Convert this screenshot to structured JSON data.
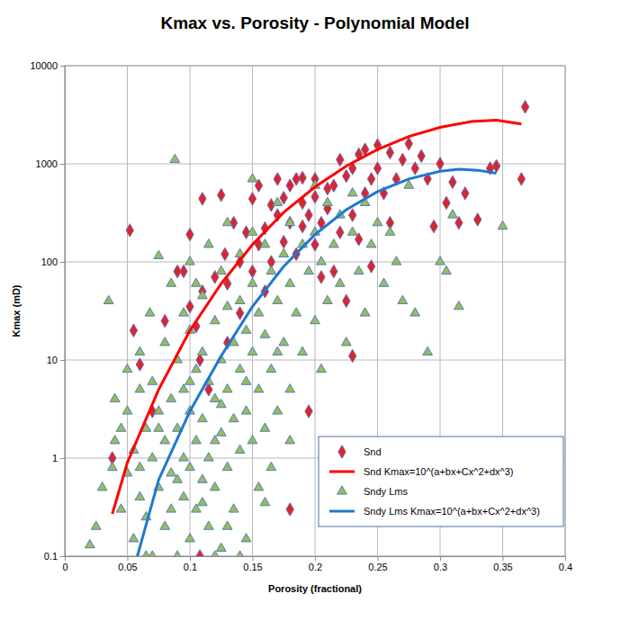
{
  "chart_data": {
    "type": "scatter",
    "title": "Kmax vs. Porosity - Polynomial Model",
    "x_label": "Porosity (fractional)",
    "y_label": "Kmax (mD)",
    "xlim": [
      0,
      0.4
    ],
    "ylim": [
      0.1,
      10000
    ],
    "xticks": [
      0,
      0.05,
      0.1,
      0.15,
      0.2,
      0.25,
      0.3,
      0.35,
      0.4
    ],
    "yticks": [
      0.1,
      1,
      10,
      100,
      1000,
      10000
    ],
    "log": "y",
    "grid": true,
    "legend": "lower right",
    "series": [
      {
        "name": "Snd",
        "type": "scatter",
        "marker": "diamond",
        "color": "#d9262e",
        "x": [
          0.038,
          0.052,
          0.055,
          0.06,
          0.07,
          0.08,
          0.09,
          0.095,
          0.1,
          0.1,
          0.105,
          0.108,
          0.108,
          0.11,
          0.11,
          0.115,
          0.12,
          0.125,
          0.128,
          0.13,
          0.13,
          0.135,
          0.14,
          0.14,
          0.145,
          0.15,
          0.15,
          0.155,
          0.155,
          0.16,
          0.16,
          0.165,
          0.165,
          0.17,
          0.17,
          0.175,
          0.175,
          0.18,
          0.18,
          0.18,
          0.185,
          0.185,
          0.19,
          0.19,
          0.19,
          0.195,
          0.195,
          0.2,
          0.2,
          0.2,
          0.205,
          0.205,
          0.21,
          0.21,
          0.215,
          0.215,
          0.22,
          0.22,
          0.225,
          0.225,
          0.23,
          0.23,
          0.23,
          0.235,
          0.235,
          0.24,
          0.24,
          0.245,
          0.245,
          0.25,
          0.25,
          0.255,
          0.26,
          0.26,
          0.265,
          0.27,
          0.275,
          0.28,
          0.285,
          0.29,
          0.295,
          0.3,
          0.305,
          0.31,
          0.315,
          0.32,
          0.33,
          0.34,
          0.345,
          0.365,
          0.368
        ],
        "values": [
          1,
          210,
          20,
          9,
          3,
          25,
          80,
          80,
          190,
          35,
          22,
          10,
          0.1,
          440,
          50,
          5,
          70,
          480,
          120,
          60,
          15,
          250,
          100,
          30,
          200,
          440,
          80,
          600,
          150,
          220,
          50,
          380,
          100,
          300,
          700,
          450,
          160,
          600,
          250,
          0.3,
          700,
          120,
          720,
          400,
          230,
          300,
          3,
          700,
          460,
          150,
          250,
          70,
          560,
          350,
          600,
          80,
          1100,
          200,
          750,
          40,
          900,
          300,
          11,
          1250,
          170,
          1400,
          500,
          700,
          90,
          1550,
          900,
          500,
          1300,
          250,
          700,
          1100,
          1600,
          900,
          1200,
          700,
          230,
          1000,
          400,
          650,
          250,
          500,
          270,
          900,
          950,
          700,
          3800
        ]
      },
      {
        "name": "Snd Kmax=10^(a+bx+Cx^2+dx^3)",
        "type": "line",
        "line_style": "solid",
        "color": "#ff0000",
        "x": [
          0.038,
          0.05,
          0.075,
          0.1,
          0.125,
          0.15,
          0.175,
          0.2,
          0.225,
          0.25,
          0.275,
          0.3,
          0.325,
          0.345,
          0.365
        ],
        "values": [
          0.27,
          0.9,
          5,
          20,
          60,
          150,
          320,
          580,
          950,
          1400,
          1900,
          2350,
          2700,
          2780,
          2550
        ]
      },
      {
        "name": "Sndy Lms",
        "type": "scatter",
        "marker": "triangle",
        "color": "#9bbb59",
        "x": [
          0.02,
          0.025,
          0.03,
          0.035,
          0.038,
          0.04,
          0.04,
          0.045,
          0.045,
          0.05,
          0.05,
          0.05,
          0.055,
          0.055,
          0.06,
          0.06,
          0.06,
          0.065,
          0.065,
          0.068,
          0.07,
          0.07,
          0.07,
          0.075,
          0.075,
          0.075,
          0.08,
          0.08,
          0.08,
          0.085,
          0.085,
          0.085,
          0.088,
          0.09,
          0.09,
          0.09,
          0.095,
          0.095,
          0.095,
          0.1,
          0.1,
          0.1,
          0.1,
          0.1,
          0.105,
          0.105,
          0.105,
          0.11,
          0.11,
          0.11,
          0.11,
          0.115,
          0.115,
          0.115,
          0.115,
          0.12,
          0.12,
          0.12,
          0.125,
          0.125,
          0.125,
          0.125,
          0.13,
          0.13,
          0.13,
          0.13,
          0.135,
          0.135,
          0.135,
          0.14,
          0.14,
          0.14,
          0.14,
          0.145,
          0.145,
          0.145,
          0.15,
          0.15,
          0.15,
          0.15,
          0.15,
          0.155,
          0.155,
          0.155,
          0.16,
          0.16,
          0.16,
          0.165,
          0.165,
          0.165,
          0.17,
          0.17,
          0.17,
          0.175,
          0.175,
          0.18,
          0.18,
          0.18,
          0.185,
          0.18,
          0.19,
          0.19,
          0.195,
          0.2,
          0.2,
          0.2,
          0.205,
          0.205,
          0.21,
          0.21,
          0.215,
          0.22,
          0.22,
          0.225,
          0.23,
          0.23,
          0.235,
          0.24,
          0.24,
          0.245,
          0.25,
          0.255,
          0.26,
          0.265,
          0.27,
          0.275,
          0.28,
          0.29,
          0.3,
          0.305,
          0.31,
          0.315,
          0.35,
          0.065,
          0.12,
          0.14,
          0.095,
          0.085,
          0.075,
          0.06,
          0.11,
          0.13,
          0.1,
          0.09,
          0.12,
          0.145,
          0.16,
          0.17,
          0.125,
          0.105
        ],
        "values": [
          0.13,
          0.2,
          0.5,
          40,
          0.8,
          4,
          1.5,
          0.3,
          2,
          8,
          0.7,
          3,
          0.15,
          1.2,
          5,
          0.4,
          12,
          2,
          0.25,
          30,
          1,
          6,
          0.1,
          115,
          3,
          0.5,
          15,
          1.5,
          0.2,
          60,
          4,
          0.7,
          1100,
          10,
          2,
          0.1,
          30,
          0.4,
          5,
          100,
          20,
          3,
          0.8,
          0.15,
          8,
          1.5,
          0.3,
          45,
          12,
          2.5,
          0.6,
          150,
          6,
          1,
          0.2,
          25,
          4,
          0.5,
          80,
          10,
          1.8,
          0.12,
          250,
          35,
          5,
          0.8,
          15,
          2.5,
          0.3,
          120,
          40,
          8,
          1.2,
          20,
          3,
          0.15,
          700,
          200,
          60,
          12,
          1.5,
          30,
          5,
          0.5,
          150,
          18,
          2,
          80,
          8,
          0.8,
          400,
          40,
          3,
          120,
          15,
          250,
          60,
          5,
          30,
          1.5,
          150,
          12,
          80,
          600,
          200,
          25,
          100,
          8,
          400,
          40,
          150,
          300,
          60,
          15,
          500,
          200,
          80,
          400,
          30,
          150,
          250,
          60,
          200,
          100,
          40,
          600,
          30,
          12,
          100,
          80,
          300,
          35,
          230,
          0.1,
          0.1,
          0.1,
          1,
          0.3,
          2,
          0.8,
          0.35,
          0.2,
          6,
          0.6,
          1.5,
          6,
          0.35,
          12,
          3.5,
          60
        ]
      },
      {
        "name": "Sndy Lms Kmax=10^(a+bx+Cx^2+dx^3)",
        "type": "line",
        "line_style": "solid",
        "color": "#1f78d1",
        "x": [
          0.058,
          0.075,
          0.1,
          0.125,
          0.15,
          0.175,
          0.2,
          0.225,
          0.25,
          0.275,
          0.3,
          0.315,
          0.33,
          0.345
        ],
        "values": [
          0.1,
          0.6,
          3,
          11,
          35,
          90,
          190,
          340,
          520,
          700,
          840,
          880,
          860,
          800
        ]
      }
    ]
  }
}
